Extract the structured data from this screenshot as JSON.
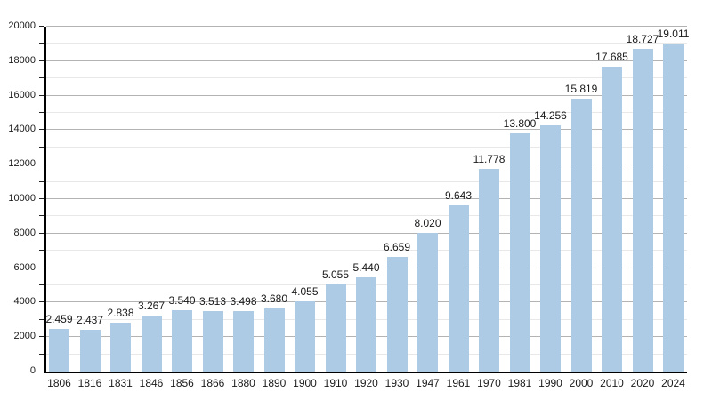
{
  "chart_data": {
    "type": "bar",
    "title": "",
    "xlabel": "",
    "ylabel": "",
    "categories": [
      "1806",
      "1816",
      "1831",
      "1846",
      "1856",
      "1866",
      "1880",
      "1890",
      "1900",
      "1910",
      "1920",
      "1930",
      "1947",
      "1961",
      "1970",
      "1981",
      "1990",
      "2000",
      "2010",
      "2020",
      "2024"
    ],
    "values": [
      2459,
      2437,
      2838,
      3267,
      3540,
      3513,
      3498,
      3680,
      4055,
      5055,
      5440,
      6659,
      8020,
      9643,
      11778,
      13800,
      14256,
      15819,
      17685,
      18727,
      19011
    ],
    "value_labels": [
      "2.459",
      "2.437",
      "2.838",
      "3.267",
      "3.540",
      "3.513",
      "3.498",
      "3.680",
      "4.055",
      "5.055",
      "5.440",
      "6.659",
      "8.020",
      "9.643",
      "11.778",
      "13.800",
      "14.256",
      "15.819",
      "17.685",
      "18.727",
      "19.011"
    ],
    "ylim": [
      0,
      20000
    ],
    "y_major_step": 2000,
    "y_minor_step": 1000,
    "y_tick_labels": [
      "0",
      "2000",
      "4000",
      "6000",
      "8000",
      "10000",
      "12000",
      "14000",
      "16000",
      "18000",
      "20000"
    ],
    "grid": "on",
    "legend": "none",
    "colors": {
      "bar_fill": "#aecbe6",
      "major_grid": "#b3b3b3",
      "minor_grid": "#e8e8e8",
      "axis": "#000000",
      "text": "#1a1a1a",
      "background": "#ffffff"
    }
  }
}
